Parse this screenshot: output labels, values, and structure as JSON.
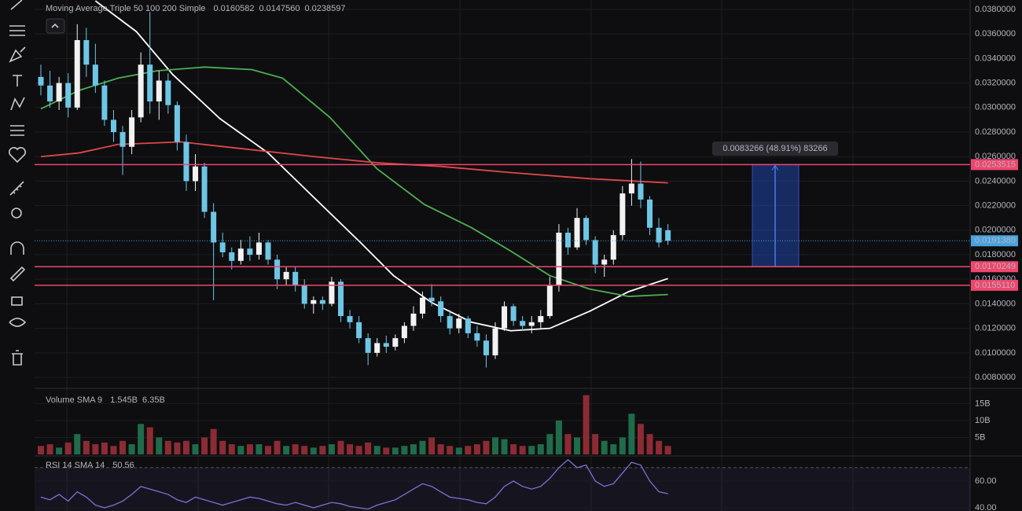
{
  "chart_data": [
    {
      "type": "candlestick",
      "title": "Moving Average Triple 50 100 200 Simple",
      "legend_values": [
        "0.0160582",
        "0.0147560",
        "0.0238597"
      ],
      "up_color": "#f2f2f2",
      "down_color": "#6ec6e6",
      "ohlc": [
        [
          0.0325,
          0.0335,
          0.031,
          0.0318
        ],
        [
          0.0318,
          0.033,
          0.03,
          0.0305
        ],
        [
          0.0305,
          0.0325,
          0.0298,
          0.032
        ],
        [
          0.032,
          0.0328,
          0.0292,
          0.03
        ],
        [
          0.03,
          0.0368,
          0.0298,
          0.0355
        ],
        [
          0.0355,
          0.0365,
          0.0325,
          0.0335
        ],
        [
          0.0335,
          0.0352,
          0.0312,
          0.0318
        ],
        [
          0.0318,
          0.0322,
          0.0285,
          0.029
        ],
        [
          0.029,
          0.0298,
          0.0272,
          0.028
        ],
        [
          0.028,
          0.0285,
          0.0245,
          0.0268
        ],
        [
          0.0268,
          0.0298,
          0.0262,
          0.0292
        ],
        [
          0.0292,
          0.0345,
          0.0288,
          0.0335
        ],
        [
          0.0335,
          0.0378,
          0.0295,
          0.0305
        ],
        [
          0.0305,
          0.033,
          0.029,
          0.0322
        ],
        [
          0.0322,
          0.0328,
          0.0295,
          0.0302
        ],
        [
          0.0302,
          0.0305,
          0.0265,
          0.0272
        ],
        [
          0.0272,
          0.0278,
          0.0232,
          0.024
        ],
        [
          0.024,
          0.0262,
          0.0232,
          0.0252
        ],
        [
          0.0252,
          0.0255,
          0.021,
          0.0215
        ],
        [
          0.0215,
          0.0222,
          0.0143,
          0.019
        ],
        [
          0.019,
          0.0198,
          0.0178,
          0.0182
        ],
        [
          0.0182,
          0.0186,
          0.0168,
          0.0175
        ],
        [
          0.0175,
          0.0192,
          0.0172,
          0.0185
        ],
        [
          0.0185,
          0.0195,
          0.0175,
          0.018
        ],
        [
          0.018,
          0.0198,
          0.0176,
          0.019
        ],
        [
          0.019,
          0.0192,
          0.0172,
          0.0176
        ],
        [
          0.0176,
          0.018,
          0.0152,
          0.016
        ],
        [
          0.016,
          0.017,
          0.0155,
          0.0166
        ],
        [
          0.0166,
          0.017,
          0.015,
          0.0155
        ],
        [
          0.0155,
          0.016,
          0.0136,
          0.014
        ],
        [
          0.014,
          0.0146,
          0.0132,
          0.0143
        ],
        [
          0.0143,
          0.0146,
          0.0135,
          0.014
        ],
        [
          0.014,
          0.0162,
          0.0138,
          0.0158
        ],
        [
          0.0158,
          0.016,
          0.0125,
          0.013
        ],
        [
          0.013,
          0.0135,
          0.012,
          0.0125
        ],
        [
          0.0125,
          0.013,
          0.0108,
          0.0112
        ],
        [
          0.0112,
          0.0116,
          0.009,
          0.01
        ],
        [
          0.01,
          0.0112,
          0.0097,
          0.0108
        ],
        [
          0.0108,
          0.0114,
          0.01,
          0.0105
        ],
        [
          0.0105,
          0.0115,
          0.0102,
          0.0112
        ],
        [
          0.0112,
          0.0125,
          0.0108,
          0.0122
        ],
        [
          0.0122,
          0.0138,
          0.0118,
          0.0132
        ],
        [
          0.0132,
          0.015,
          0.0128,
          0.0145
        ],
        [
          0.0145,
          0.0156,
          0.0138,
          0.0142
        ],
        [
          0.0142,
          0.0146,
          0.0125,
          0.013
        ],
        [
          0.013,
          0.0135,
          0.0115,
          0.012
        ],
        [
          0.012,
          0.0132,
          0.0116,
          0.0128
        ],
        [
          0.0128,
          0.013,
          0.0112,
          0.0116
        ],
        [
          0.0116,
          0.0122,
          0.0105,
          0.011
        ],
        [
          0.011,
          0.0115,
          0.0088,
          0.0098
        ],
        [
          0.0098,
          0.0125,
          0.0095,
          0.012
        ],
        [
          0.012,
          0.0142,
          0.0118,
          0.0138
        ],
        [
          0.0138,
          0.014,
          0.0122,
          0.0126
        ],
        [
          0.0126,
          0.013,
          0.0118,
          0.0122
        ],
        [
          0.0122,
          0.013,
          0.0116,
          0.0125
        ],
        [
          0.0125,
          0.0135,
          0.012,
          0.013
        ],
        [
          0.013,
          0.0162,
          0.0128,
          0.0155
        ],
        [
          0.0155,
          0.0205,
          0.015,
          0.0198
        ],
        [
          0.0198,
          0.0202,
          0.018,
          0.0186
        ],
        [
          0.0186,
          0.0218,
          0.0184,
          0.021
        ],
        [
          0.021,
          0.0212,
          0.0188,
          0.0192
        ],
        [
          0.0192,
          0.0195,
          0.0165,
          0.0172
        ],
        [
          0.0172,
          0.018,
          0.0162,
          0.0176
        ],
        [
          0.0176,
          0.02,
          0.0172,
          0.0196
        ],
        [
          0.0196,
          0.0236,
          0.0192,
          0.023
        ],
        [
          0.023,
          0.0258,
          0.022,
          0.0238
        ],
        [
          0.0238,
          0.0256,
          0.0218,
          0.0225
        ],
        [
          0.0225,
          0.0228,
          0.0196,
          0.0202
        ],
        [
          0.0202,
          0.021,
          0.0186,
          0.019
        ],
        [
          0.02,
          0.0205,
          0.0188,
          0.019138
        ]
      ],
      "overlays": [
        {
          "color": "#ffffff",
          "points": [
            [
              6,
              0.0387
            ],
            [
              10.5,
              0.0362
            ],
            [
              14.5,
              0.0327
            ],
            [
              19.7,
              0.0291
            ],
            [
              25,
              0.0263
            ],
            [
              30,
              0.0227
            ],
            [
              35.3,
              0.0189
            ],
            [
              38.8,
              0.0163
            ],
            [
              43,
              0.0141
            ],
            [
              47.4,
              0.0125
            ],
            [
              51.7,
              0.0118
            ],
            [
              56,
              0.012
            ],
            [
              60.4,
              0.0134
            ],
            [
              64.7,
              0.015
            ],
            [
              69,
              0.0160582
            ]
          ]
        },
        {
          "color": "#4caf50",
          "points": [
            [
              0,
              0.0299
            ],
            [
              4.2,
              0.0314
            ],
            [
              8.5,
              0.0324
            ],
            [
              12.8,
              0.033
            ],
            [
              18,
              0.0333
            ],
            [
              23.2,
              0.0331
            ],
            [
              26.6,
              0.0324
            ],
            [
              31.8,
              0.0292
            ],
            [
              37,
              0.025
            ],
            [
              42.2,
              0.0221
            ],
            [
              47.4,
              0.0202
            ],
            [
              51.7,
              0.0183
            ],
            [
              56,
              0.0163
            ],
            [
              60.4,
              0.0152
            ],
            [
              64.7,
              0.0146
            ],
            [
              69,
              0.014756
            ]
          ]
        },
        {
          "color": "#e04848",
          "points": [
            [
              0,
              0.026
            ],
            [
              4.2,
              0.0263
            ],
            [
              8.5,
              0.027
            ],
            [
              15.4,
              0.0272
            ],
            [
              21.5,
              0.0267
            ],
            [
              30.1,
              0.026
            ],
            [
              37,
              0.0255
            ],
            [
              44,
              0.0252
            ],
            [
              51.7,
              0.0247
            ],
            [
              60.4,
              0.0242
            ],
            [
              69,
              0.0238597
            ]
          ]
        }
      ],
      "levels": [
        {
          "value": 0.0253515,
          "label": "0.0253515"
        },
        {
          "value": 0.0170249,
          "label": "0.0170249"
        },
        {
          "value": 0.015511,
          "label": "0.0155110"
        }
      ],
      "level_color": "#f0466e",
      "last": {
        "value": 0.019138,
        "label": "0.0191380"
      },
      "last_color": "#4aa3df",
      "measure_label": "0.0083266 (48.91%) 83266",
      "ylim": [
        0.00717,
        0.03877
      ],
      "yticks": [
        {
          "value": 0.008,
          "label": "0.0080000"
        },
        {
          "value": 0.01,
          "label": "0.0100000"
        },
        {
          "value": 0.012,
          "label": "0.0120000"
        },
        {
          "value": 0.014,
          "label": "0.0140000"
        },
        {
          "value": 0.016,
          "label": "0.0160000"
        },
        {
          "value": 0.018,
          "label": "0.0180000"
        },
        {
          "value": 0.02,
          "label": "0.0200000"
        },
        {
          "value": 0.022,
          "label": "0.0220000"
        },
        {
          "value": 0.024,
          "label": "0.0240000"
        },
        {
          "value": 0.026,
          "label": "0.0260000"
        },
        {
          "value": 0.028,
          "label": "0.0280000"
        },
        {
          "value": 0.03,
          "label": "0.0300000"
        },
        {
          "value": 0.032,
          "label": "0.0320000"
        },
        {
          "value": 0.034,
          "label": "0.0340000"
        },
        {
          "value": 0.036,
          "label": "0.0360000"
        },
        {
          "value": 0.038,
          "label": "0.0380000"
        }
      ]
    },
    {
      "type": "bar",
      "title": "Volume SMA 9",
      "legend_values": [
        "1.545B",
        "6.35B"
      ],
      "up_color": "#1f6b4a",
      "down_color": "#8c2b33",
      "values": [
        2.5,
        3,
        2,
        3.5,
        6,
        4,
        3,
        3.5,
        2.5,
        4,
        3,
        9,
        8,
        5,
        4,
        3.5,
        4,
        3,
        5,
        7.5,
        4,
        3,
        2.5,
        3,
        3,
        2.5,
        4,
        2.5,
        3,
        2.5,
        2,
        2.5,
        3,
        4,
        3,
        2.5,
        3.5,
        2.5,
        2,
        2,
        2.5,
        3,
        4,
        5,
        3,
        2.5,
        2,
        2.5,
        3,
        4,
        5,
        4.5,
        3,
        2.5,
        2.5,
        3,
        6,
        10,
        6,
        5,
        17.5,
        6,
        4,
        3,
        5,
        12,
        9,
        6,
        4,
        2.5
      ],
      "ylim": [
        0,
        18.8
      ],
      "yticks": [
        {
          "value": 5,
          "label": "5B"
        },
        {
          "value": 10,
          "label": "10B"
        },
        {
          "value": 15,
          "label": "15B"
        }
      ]
    },
    {
      "type": "line",
      "title": "RSI 14 SMA 14",
      "legend_values": [
        "50.56"
      ],
      "color": "#7e6fd6",
      "values": [
        48,
        46,
        50,
        45,
        52,
        48,
        42,
        40,
        42,
        45,
        50,
        56,
        54,
        52,
        50,
        46,
        44,
        48,
        46,
        44,
        42,
        44,
        46,
        48,
        47,
        45,
        43,
        42,
        44,
        42,
        40,
        42,
        44,
        43,
        41,
        40,
        39,
        42,
        44,
        46,
        50,
        54,
        58,
        56,
        52,
        48,
        47,
        46,
        44,
        43,
        48,
        56,
        60,
        56,
        54,
        56,
        62,
        70,
        76,
        70,
        72,
        60,
        56,
        58,
        66,
        74,
        72,
        60,
        52,
        50.56
      ],
      "levels": [
        70
      ],
      "ylim": [
        37.6,
        77
      ],
      "yticks": [
        {
          "value": 40,
          "label": "40.00"
        },
        {
          "value": 60,
          "label": "60.00"
        }
      ]
    }
  ]
}
